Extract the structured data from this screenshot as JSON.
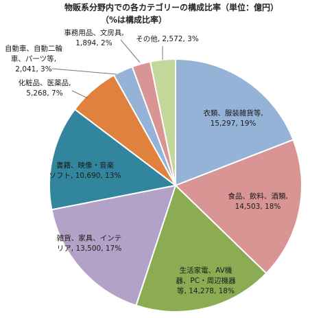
{
  "chart_data": {
    "type": "pie",
    "title": "物販系分野内での各カテゴリーの構成比率（単位：億円）",
    "subtitle": "（%は構成比率）",
    "slices": [
      {
        "lines": [
          "衣類、服装雑貨等,",
          "15,297, 19%"
        ],
        "value": 15297,
        "percent": 19,
        "color": "#95b3d7"
      },
      {
        "lines": [
          "食品、飲料、酒類,",
          "14,503, 18%"
        ],
        "value": 14503,
        "percent": 18,
        "color": "#d99594"
      },
      {
        "lines": [
          "生活家電、AV機",
          "器、PC・周辺機器",
          "等, 14,278, 18%"
        ],
        "value": 14278,
        "percent": 18,
        "color": "#8cac54"
      },
      {
        "lines": [
          "雑貨、家具、インテ",
          "リア, 13,500, 17%"
        ],
        "value": 13500,
        "percent": 17,
        "color": "#b2a2c7"
      },
      {
        "lines": [
          "書籍、映像・音楽",
          "ソフト, 10,690, 13%"
        ],
        "value": 10690,
        "percent": 13,
        "color": "#31859c"
      },
      {
        "lines": [
          "化粧品、医薬品,",
          "5,268, 7%"
        ],
        "value": 5268,
        "percent": 7,
        "color": "#e0823d"
      },
      {
        "lines": [
          "自動車、自動二輪",
          "車、パーツ等,",
          "2,041, 3%"
        ],
        "value": 2041,
        "percent": 3,
        "color": "#95b3d7"
      },
      {
        "lines": [
          "事務用品、文房具,",
          "1,894, 2%"
        ],
        "value": 1894,
        "percent": 2,
        "color": "#d99594"
      },
      {
        "lines": [
          "その他, 2,572, 3%"
        ],
        "value": 2572,
        "percent": 3,
        "color": "#c4d79b"
      }
    ]
  }
}
